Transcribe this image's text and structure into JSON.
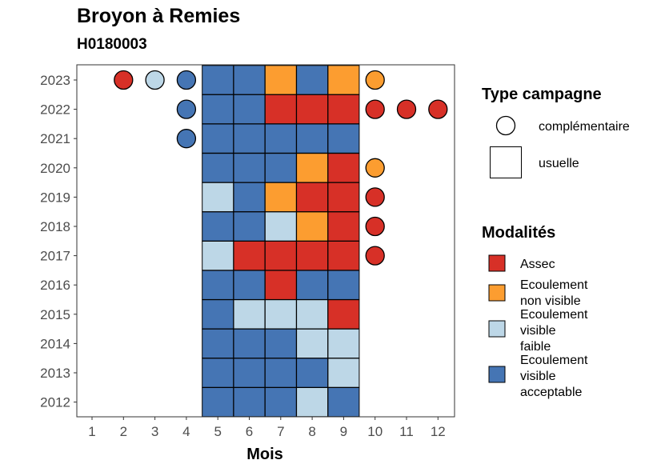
{
  "header": {
    "title": "Broyon à Remies",
    "subtitle": "H0180003"
  },
  "chart_data": {
    "type": "heatmap",
    "xlabel": "Mois",
    "ylabel": "",
    "x": [
      1,
      2,
      3,
      4,
      5,
      6,
      7,
      8,
      9,
      10,
      11,
      12
    ],
    "y": [
      "2012",
      "2013",
      "2014",
      "2015",
      "2016",
      "2017",
      "2018",
      "2019",
      "2020",
      "2021",
      "2022",
      "2023"
    ],
    "grid": false,
    "legend_placement": "right",
    "colors": {
      "Assec": "#d73027",
      "Ecoulement non visible": "#fc9d30",
      "Ecoulement visible faible": "#bdd7e7",
      "Ecoulement visible acceptable": "#4575b4"
    },
    "legend_campaign": {
      "title": "Type campagne",
      "items": [
        {
          "key": "complementaire",
          "label": "complémentaire",
          "shape": "circle"
        },
        {
          "key": "usuelle",
          "label": "usuelle",
          "shape": "square"
        }
      ]
    },
    "legend_modalites": {
      "title": "Modalités",
      "items": [
        {
          "key": "Assec",
          "lines": [
            "Assec"
          ]
        },
        {
          "key": "Ecoulement non visible",
          "lines": [
            "Ecoulement",
            "non visible"
          ]
        },
        {
          "key": "Ecoulement visible faible",
          "lines": [
            "Ecoulement",
            "visible",
            "faible"
          ]
        },
        {
          "key": "Ecoulement visible acceptable",
          "lines": [
            "Ecoulement",
            "visible",
            "acceptable"
          ]
        }
      ]
    },
    "observations": [
      {
        "year": "2023",
        "month": 2,
        "type": "complementaire",
        "modalite": "Assec"
      },
      {
        "year": "2023",
        "month": 3,
        "type": "complementaire",
        "modalite": "Ecoulement visible faible"
      },
      {
        "year": "2023",
        "month": 4,
        "type": "complementaire",
        "modalite": "Ecoulement visible acceptable"
      },
      {
        "year": "2023",
        "month": 5,
        "type": "usuelle",
        "modalite": "Ecoulement visible acceptable"
      },
      {
        "year": "2023",
        "month": 6,
        "type": "usuelle",
        "modalite": "Ecoulement visible acceptable"
      },
      {
        "year": "2023",
        "month": 7,
        "type": "usuelle",
        "modalite": "Ecoulement non visible"
      },
      {
        "year": "2023",
        "month": 8,
        "type": "usuelle",
        "modalite": "Ecoulement visible acceptable"
      },
      {
        "year": "2023",
        "month": 9,
        "type": "usuelle",
        "modalite": "Ecoulement non visible"
      },
      {
        "year": "2023",
        "month": 10,
        "type": "complementaire",
        "modalite": "Ecoulement non visible"
      },
      {
        "year": "2022",
        "month": 4,
        "type": "complementaire",
        "modalite": "Ecoulement visible acceptable"
      },
      {
        "year": "2022",
        "month": 5,
        "type": "usuelle",
        "modalite": "Ecoulement visible acceptable"
      },
      {
        "year": "2022",
        "month": 6,
        "type": "usuelle",
        "modalite": "Ecoulement visible acceptable"
      },
      {
        "year": "2022",
        "month": 7,
        "type": "usuelle",
        "modalite": "Assec"
      },
      {
        "year": "2022",
        "month": 8,
        "type": "usuelle",
        "modalite": "Assec"
      },
      {
        "year": "2022",
        "month": 9,
        "type": "usuelle",
        "modalite": "Assec"
      },
      {
        "year": "2022",
        "month": 10,
        "type": "complementaire",
        "modalite": "Assec"
      },
      {
        "year": "2022",
        "month": 11,
        "type": "complementaire",
        "modalite": "Assec"
      },
      {
        "year": "2022",
        "month": 12,
        "type": "complementaire",
        "modalite": "Assec"
      },
      {
        "year": "2021",
        "month": 4,
        "type": "complementaire",
        "modalite": "Ecoulement visible acceptable"
      },
      {
        "year": "2021",
        "month": 5,
        "type": "usuelle",
        "modalite": "Ecoulement visible acceptable"
      },
      {
        "year": "2021",
        "month": 6,
        "type": "usuelle",
        "modalite": "Ecoulement visible acceptable"
      },
      {
        "year": "2021",
        "month": 7,
        "type": "usuelle",
        "modalite": "Ecoulement visible acceptable"
      },
      {
        "year": "2021",
        "month": 8,
        "type": "usuelle",
        "modalite": "Ecoulement visible acceptable"
      },
      {
        "year": "2021",
        "month": 9,
        "type": "usuelle",
        "modalite": "Ecoulement visible acceptable"
      },
      {
        "year": "2020",
        "month": 5,
        "type": "usuelle",
        "modalite": "Ecoulement visible acceptable"
      },
      {
        "year": "2020",
        "month": 6,
        "type": "usuelle",
        "modalite": "Ecoulement visible acceptable"
      },
      {
        "year": "2020",
        "month": 7,
        "type": "usuelle",
        "modalite": "Ecoulement visible acceptable"
      },
      {
        "year": "2020",
        "month": 8,
        "type": "usuelle",
        "modalite": "Ecoulement non visible"
      },
      {
        "year": "2020",
        "month": 9,
        "type": "usuelle",
        "modalite": "Assec"
      },
      {
        "year": "2020",
        "month": 10,
        "type": "complementaire",
        "modalite": "Ecoulement non visible"
      },
      {
        "year": "2019",
        "month": 5,
        "type": "usuelle",
        "modalite": "Ecoulement visible faible"
      },
      {
        "year": "2019",
        "month": 6,
        "type": "usuelle",
        "modalite": "Ecoulement visible acceptable"
      },
      {
        "year": "2019",
        "month": 7,
        "type": "usuelle",
        "modalite": "Ecoulement non visible"
      },
      {
        "year": "2019",
        "month": 8,
        "type": "usuelle",
        "modalite": "Assec"
      },
      {
        "year": "2019",
        "month": 9,
        "type": "usuelle",
        "modalite": "Assec"
      },
      {
        "year": "2019",
        "month": 10,
        "type": "complementaire",
        "modalite": "Assec"
      },
      {
        "year": "2018",
        "month": 5,
        "type": "usuelle",
        "modalite": "Ecoulement visible acceptable"
      },
      {
        "year": "2018",
        "month": 6,
        "type": "usuelle",
        "modalite": "Ecoulement visible acceptable"
      },
      {
        "year": "2018",
        "month": 7,
        "type": "usuelle",
        "modalite": "Ecoulement visible faible"
      },
      {
        "year": "2018",
        "month": 8,
        "type": "usuelle",
        "modalite": "Ecoulement non visible"
      },
      {
        "year": "2018",
        "month": 9,
        "type": "usuelle",
        "modalite": "Assec"
      },
      {
        "year": "2018",
        "month": 10,
        "type": "complementaire",
        "modalite": "Assec"
      },
      {
        "year": "2017",
        "month": 5,
        "type": "usuelle",
        "modalite": "Ecoulement visible faible"
      },
      {
        "year": "2017",
        "month": 6,
        "type": "usuelle",
        "modalite": "Assec"
      },
      {
        "year": "2017",
        "month": 7,
        "type": "usuelle",
        "modalite": "Assec"
      },
      {
        "year": "2017",
        "month": 8,
        "type": "usuelle",
        "modalite": "Assec"
      },
      {
        "year": "2017",
        "month": 9,
        "type": "usuelle",
        "modalite": "Assec"
      },
      {
        "year": "2017",
        "month": 10,
        "type": "complementaire",
        "modalite": "Assec"
      },
      {
        "year": "2016",
        "month": 5,
        "type": "usuelle",
        "modalite": "Ecoulement visible acceptable"
      },
      {
        "year": "2016",
        "month": 6,
        "type": "usuelle",
        "modalite": "Ecoulement visible acceptable"
      },
      {
        "year": "2016",
        "month": 7,
        "type": "usuelle",
        "modalite": "Assec"
      },
      {
        "year": "2016",
        "month": 8,
        "type": "usuelle",
        "modalite": "Ecoulement visible acceptable"
      },
      {
        "year": "2016",
        "month": 9,
        "type": "usuelle",
        "modalite": "Ecoulement visible acceptable"
      },
      {
        "year": "2015",
        "month": 5,
        "type": "usuelle",
        "modalite": "Ecoulement visible acceptable"
      },
      {
        "year": "2015",
        "month": 6,
        "type": "usuelle",
        "modalite": "Ecoulement visible faible"
      },
      {
        "year": "2015",
        "month": 7,
        "type": "usuelle",
        "modalite": "Ecoulement visible faible"
      },
      {
        "year": "2015",
        "month": 8,
        "type": "usuelle",
        "modalite": "Ecoulement visible faible"
      },
      {
        "year": "2015",
        "month": 9,
        "type": "usuelle",
        "modalite": "Assec"
      },
      {
        "year": "2014",
        "month": 5,
        "type": "usuelle",
        "modalite": "Ecoulement visible acceptable"
      },
      {
        "year": "2014",
        "month": 6,
        "type": "usuelle",
        "modalite": "Ecoulement visible acceptable"
      },
      {
        "year": "2014",
        "month": 7,
        "type": "usuelle",
        "modalite": "Ecoulement visible acceptable"
      },
      {
        "year": "2014",
        "month": 8,
        "type": "usuelle",
        "modalite": "Ecoulement visible faible"
      },
      {
        "year": "2014",
        "month": 9,
        "type": "usuelle",
        "modalite": "Ecoulement visible faible"
      },
      {
        "year": "2013",
        "month": 5,
        "type": "usuelle",
        "modalite": "Ecoulement visible acceptable"
      },
      {
        "year": "2013",
        "month": 6,
        "type": "usuelle",
        "modalite": "Ecoulement visible acceptable"
      },
      {
        "year": "2013",
        "month": 7,
        "type": "usuelle",
        "modalite": "Ecoulement visible acceptable"
      },
      {
        "year": "2013",
        "month": 8,
        "type": "usuelle",
        "modalite": "Ecoulement visible acceptable"
      },
      {
        "year": "2013",
        "month": 9,
        "type": "usuelle",
        "modalite": "Ecoulement visible faible"
      },
      {
        "year": "2012",
        "month": 5,
        "type": "usuelle",
        "modalite": "Ecoulement visible acceptable"
      },
      {
        "year": "2012",
        "month": 6,
        "type": "usuelle",
        "modalite": "Ecoulement visible acceptable"
      },
      {
        "year": "2012",
        "month": 7,
        "type": "usuelle",
        "modalite": "Ecoulement visible acceptable"
      },
      {
        "year": "2012",
        "month": 8,
        "type": "usuelle",
        "modalite": "Ecoulement visible faible"
      },
      {
        "year": "2012",
        "month": 9,
        "type": "usuelle",
        "modalite": "Ecoulement visible acceptable"
      }
    ]
  }
}
